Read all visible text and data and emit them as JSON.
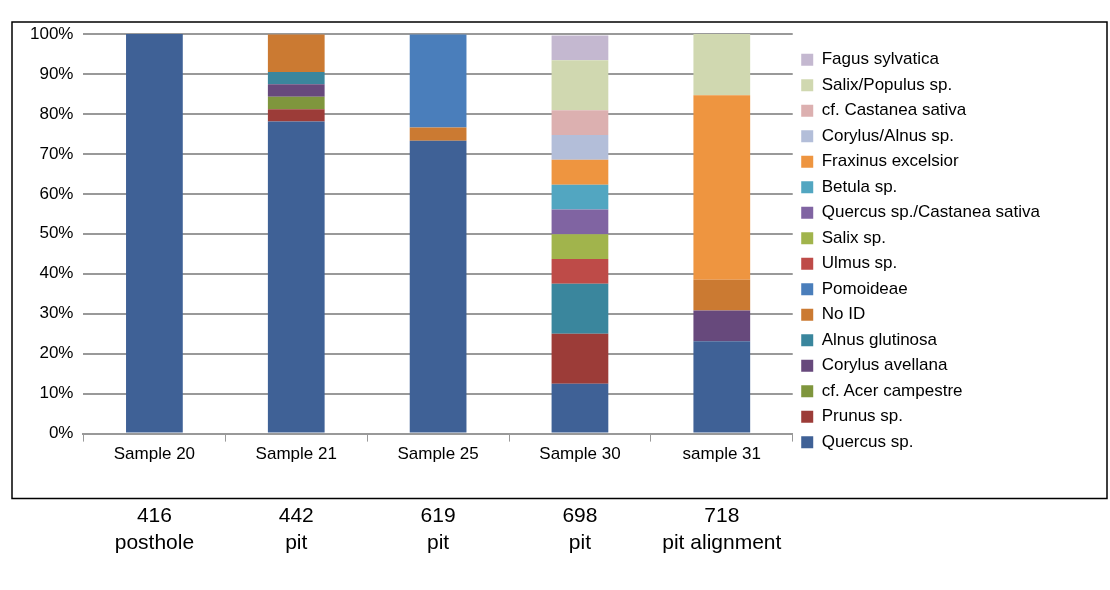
{
  "chart_data": {
    "type": "bar",
    "stacked": true,
    "categories": [
      "Sample 20",
      "Sample 21",
      "Sample 25",
      "Sample 30",
      "sample 31"
    ],
    "series": [
      {
        "name": "Quercus sp.",
        "color": "#3f6196",
        "values": [
          100,
          78.1,
          73.3,
          12.5,
          23.1
        ]
      },
      {
        "name": "Prunus sp.",
        "color": "#9c3c38",
        "values": [
          null,
          3.1,
          null,
          12.5,
          null
        ]
      },
      {
        "name": "cf. Acer campestre",
        "color": "#7f963d",
        "values": [
          null,
          3.1,
          null,
          null,
          null
        ]
      },
      {
        "name": "Corylus avellana",
        "color": "#67497c",
        "values": [
          null,
          3.1,
          null,
          null,
          7.7
        ]
      },
      {
        "name": "Alnus glutinosa",
        "color": "#3a869d",
        "values": [
          null,
          3.1,
          null,
          12.5,
          null
        ]
      },
      {
        "name": "No ID",
        "color": "#cb7a32",
        "values": [
          null,
          9.4,
          3.3,
          null,
          7.7
        ]
      },
      {
        "name": "Pomoideae",
        "color": "#4a7ebb",
        "values": [
          null,
          null,
          23.3,
          null,
          null
        ]
      },
      {
        "name": "Ulmus sp.",
        "color": "#be4b48",
        "values": [
          null,
          null,
          null,
          6.2,
          null
        ]
      },
      {
        "name": "Salix sp.",
        "color": "#a1b44c",
        "values": [
          null,
          null,
          null,
          6.2,
          null
        ]
      },
      {
        "name": "Quercus sp./Castanea sativa",
        "color": "#8064a2",
        "values": [
          null,
          null,
          null,
          6.2,
          null
        ]
      },
      {
        "name": "Betula sp.",
        "color": "#52a6c1",
        "values": [
          null,
          null,
          null,
          6.2,
          null
        ]
      },
      {
        "name": "Fraxinus excelsior",
        "color": "#ee9540",
        "values": [
          null,
          null,
          null,
          6.2,
          46.2
        ]
      },
      {
        "name": "Corylus/Alnus sp.",
        "color": "#b3bed9",
        "values": [
          null,
          null,
          null,
          6.2,
          null
        ]
      },
      {
        "name": "cf. Castanea sativa",
        "color": "#dcb0b0",
        "values": [
          null,
          null,
          null,
          6.2,
          null
        ]
      },
      {
        "name": "Salix/Populus sp.",
        "color": "#d0d8b0",
        "values": [
          null,
          null,
          null,
          12.5,
          15.4
        ]
      },
      {
        "name": "Fagus sylvatica",
        "color": "#c4b8d0",
        "values": [
          null,
          null,
          null,
          6.2,
          null
        ]
      }
    ],
    "ylim": [
      0,
      100
    ],
    "yticks": [
      {
        "value": 0,
        "label": "0%"
      },
      {
        "value": 10,
        "label": "10%"
      },
      {
        "value": 20,
        "label": "20%"
      },
      {
        "value": 30,
        "label": "30%"
      },
      {
        "value": 40,
        "label": "40%"
      },
      {
        "value": 50,
        "label": "50%"
      },
      {
        "value": 60,
        "label": "60%"
      },
      {
        "value": 70,
        "label": "70%"
      },
      {
        "value": 80,
        "label": "80%"
      },
      {
        "value": 90,
        "label": "90%"
      },
      {
        "value": 100,
        "label": "100%"
      }
    ],
    "grid": "y",
    "legend": "right",
    "annotations": [
      "416\nposthole",
      "442\npit",
      "619\npit",
      "698\npit",
      "718\npit alignment"
    ]
  }
}
